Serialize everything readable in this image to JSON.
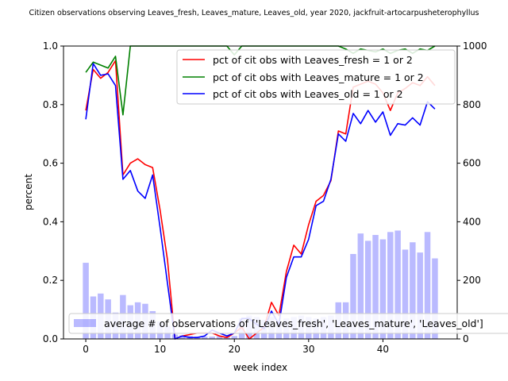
{
  "chart_data": {
    "type": "line",
    "title": "Citizen observations observing Leaves_fresh, Leaves_mature, Leaves_old, year 2020, jackfruit-artocarpusheterophyllus",
    "xlabel": "week index",
    "ylabel": "percent",
    "xlim": [
      -3,
      50
    ],
    "ylim": [
      0,
      1.0
    ],
    "ylim_right": [
      0,
      1000
    ],
    "x_ticks": [
      0,
      10,
      20,
      30,
      40
    ],
    "y_ticks": [
      0.0,
      0.2,
      0.4,
      0.6,
      0.8,
      1.0
    ],
    "y_tick_labels": [
      "0.0",
      "0.2",
      "0.4",
      "0.6",
      "0.8",
      "1.0"
    ],
    "y_right_ticks": [
      0,
      200,
      400,
      600,
      800,
      1000
    ],
    "grid": false,
    "legend_position": "top-right",
    "x": [
      0,
      1,
      2,
      3,
      4,
      5,
      6,
      7,
      8,
      9,
      10,
      11,
      12,
      13,
      14,
      15,
      16,
      17,
      18,
      19,
      20,
      21,
      22,
      23,
      24,
      25,
      26,
      27,
      28,
      29,
      30,
      31,
      32,
      33,
      34,
      35,
      36,
      37,
      38,
      39,
      40,
      41,
      42,
      43,
      44,
      45,
      46,
      47
    ],
    "series": [
      {
        "name": "pct of cit obs with Leaves_fresh = 1 or 2",
        "color": "#ff0000",
        "axis": "left",
        "values": [
          0.78,
          0.92,
          0.89,
          0.91,
          0.95,
          0.56,
          0.6,
          0.615,
          0.595,
          0.585,
          0.44,
          0.27,
          0.0,
          0.01,
          0.015,
          0.02,
          0.02,
          0.02,
          0.01,
          0.005,
          0.02,
          0.04,
          0.0,
          0.02,
          0.04,
          0.125,
          0.08,
          0.23,
          0.32,
          0.29,
          0.39,
          0.47,
          0.49,
          0.54,
          0.71,
          0.7,
          0.86,
          0.87,
          0.88,
          0.87,
          0.84,
          0.78,
          0.84,
          0.855,
          0.875,
          0.865,
          0.895,
          0.865
        ]
      },
      {
        "name": "pct of cit obs with Leaves_mature = 1 or 2",
        "color": "#008000",
        "axis": "left",
        "values": [
          0.91,
          0.945,
          0.935,
          0.925,
          0.965,
          0.765,
          1.0,
          1.0,
          1.0,
          1.0,
          1.0,
          1.0,
          1.0,
          1.0,
          1.0,
          1.0,
          1.0,
          1.0,
          1.0,
          1.0,
          0.97,
          1.0,
          1.0,
          1.0,
          1.0,
          1.0,
          1.0,
          1.0,
          1.0,
          1.0,
          1.0,
          1.0,
          1.0,
          1.0,
          1.0,
          0.99,
          0.975,
          0.99,
          0.985,
          0.98,
          0.99,
          0.975,
          0.985,
          0.99,
          0.975,
          0.99,
          0.985,
          1.0
        ]
      },
      {
        "name": "pct of cit obs with Leaves_old = 1 or 2",
        "color": "#0000ff",
        "axis": "left",
        "values": [
          0.75,
          0.94,
          0.9,
          0.905,
          0.865,
          0.545,
          0.575,
          0.505,
          0.48,
          0.56,
          0.38,
          0.19,
          0.0,
          0.01,
          0.005,
          0.005,
          0.01,
          0.03,
          0.02,
          0.01,
          0.02,
          0.07,
          0.07,
          0.05,
          0.035,
          0.095,
          0.05,
          0.21,
          0.28,
          0.28,
          0.34,
          0.455,
          0.47,
          0.545,
          0.7,
          0.675,
          0.77,
          0.735,
          0.78,
          0.74,
          0.775,
          0.695,
          0.735,
          0.73,
          0.755,
          0.73,
          0.81,
          0.785
        ]
      },
      {
        "name": "average # of observations of ['Leaves_fresh', 'Leaves_mature', 'Leaves_old']",
        "color": "#0000ff",
        "opacity": 0.27,
        "kind": "bar",
        "axis": "right",
        "values": [
          260,
          145,
          155,
          135,
          90,
          150,
          115,
          125,
          120,
          95,
          60,
          45,
          15,
          12,
          10,
          8,
          8,
          8,
          10,
          8,
          10,
          70,
          80,
          75,
          65,
          75,
          60,
          70,
          75,
          80,
          75,
          70,
          75,
          80,
          125,
          125,
          290,
          360,
          335,
          355,
          340,
          365,
          370,
          305,
          330,
          295,
          365,
          275
        ]
      }
    ]
  }
}
